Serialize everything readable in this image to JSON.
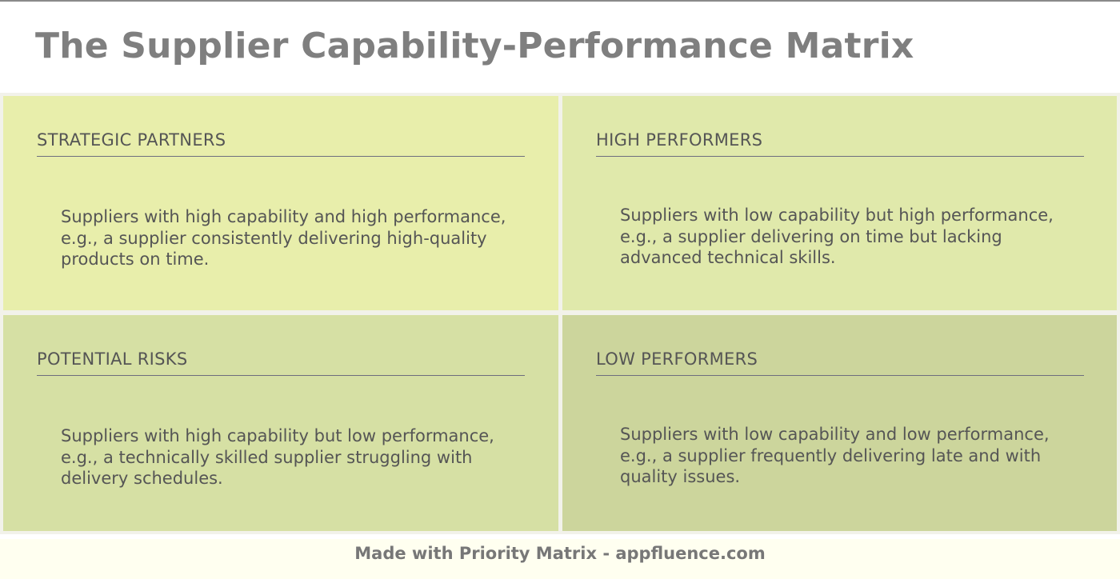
{
  "title": "The Supplier Capability-Performance Matrix",
  "quadrants": [
    {
      "title": "STRATEGIC PARTNERS",
      "description": "Suppliers with high capability and high performance, e.g., a supplier consistently delivering high-quality products on time.",
      "color": "#e8eeab"
    },
    {
      "title": "HIGH PERFORMERS",
      "description": "Suppliers with low capability but high performance, e.g., a supplier delivering on time but lacking advanced technical skills.",
      "color": "#e0e9ab"
    },
    {
      "title": "POTENTIAL RISKS",
      "description": "Suppliers with high capability but low performance, e.g., a technically skilled supplier struggling with delivery schedules.",
      "color": "#d6e0a4"
    },
    {
      "title": "LOW PERFORMERS",
      "description": "Suppliers with low capability and low performance, e.g., a supplier frequently delivering late and with quality issues.",
      "color": "#ccd59c"
    }
  ],
  "footer": "Made with Priority Matrix - appfluence.com"
}
